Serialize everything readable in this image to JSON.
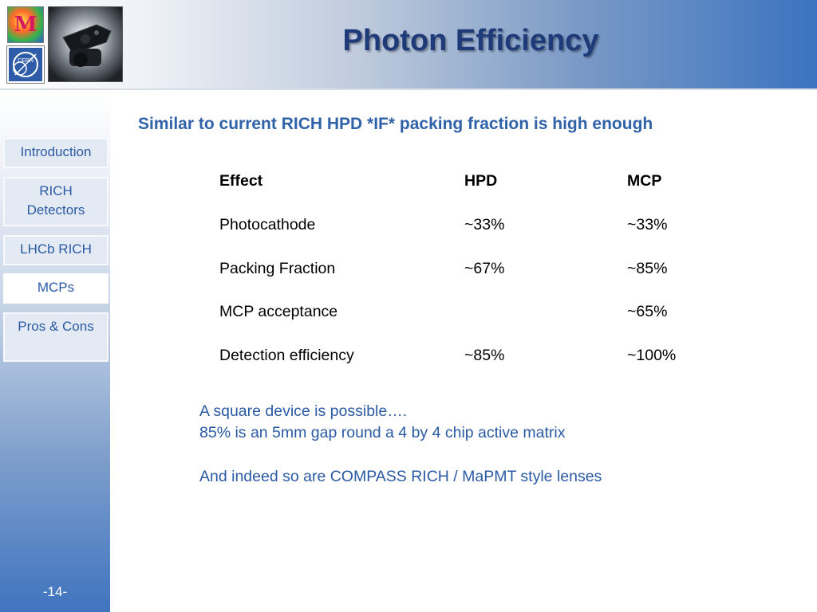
{
  "header": {
    "title": "Photon Efficiency",
    "logo_letter": "M",
    "cern_text": "CERN"
  },
  "sidebar": {
    "items": [
      {
        "label": "Introduction"
      },
      {
        "label": "RICH Detectors"
      },
      {
        "label": "LHCb RICH"
      },
      {
        "label": "MCPs"
      },
      {
        "label": "Pros & Cons"
      }
    ],
    "active_index": 3,
    "page_number": "-14-"
  },
  "main": {
    "subtitle": "Similar to current RICH HPD *IF* packing fraction is high enough",
    "table": {
      "headers": [
        "Effect",
        "HPD",
        "MCP"
      ],
      "rows": [
        [
          "Photocathode",
          "~33%",
          "~33%"
        ],
        [
          "Packing Fraction",
          "~67%",
          "~85%"
        ],
        [
          "MCP acceptance",
          "",
          "~65%"
        ],
        [
          "Detection efficiency",
          "~85%",
          "~100%"
        ]
      ]
    },
    "notes": [
      "A square device is possible….",
      "85% is an 5mm gap round a 4 by 4 chip active matrix",
      "And indeed so are COMPASS RICH / MaPMT style lenses"
    ]
  }
}
